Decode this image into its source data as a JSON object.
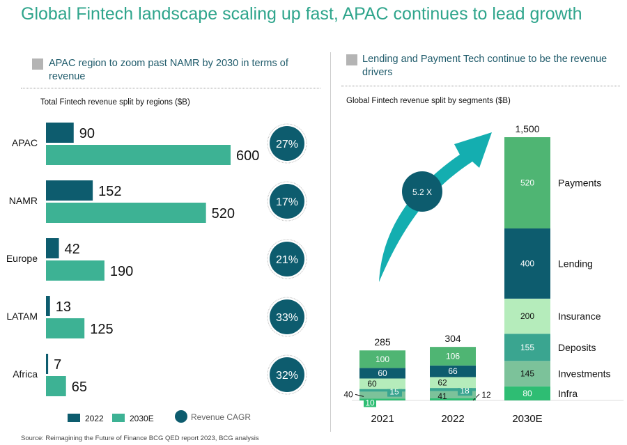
{
  "title": "Global Fintech landscape scaling up fast, APAC continues to lead growth",
  "left": {
    "subtitle": "APAC region to zoom past NAMR by 2030 in terms of revenue"
  },
  "right": {
    "subtitle": "Lending and Payment Tech continue to be the revenue drivers"
  },
  "source": "Source: Reimagining the Future of Finance BCG QED report 2023, BCG analysis",
  "chart_data": [
    {
      "type": "bar",
      "orientation": "horizontal",
      "title": "Total Fintech revenue split by regions ($B)",
      "categories": [
        "APAC",
        "NAMR",
        "Europe",
        "LATAM",
        "Africa"
      ],
      "series": [
        {
          "name": "2022",
          "color": "#0d5c6e",
          "values": [
            90,
            152,
            42,
            13,
            7
          ]
        },
        {
          "name": "2030E",
          "color": "#3db294",
          "values": [
            600,
            520,
            190,
            125,
            65
          ]
        }
      ],
      "cagr": {
        "name": "Revenue CAGR",
        "values": [
          "27%",
          "17%",
          "21%",
          "33%",
          "32%"
        ]
      },
      "legend": "bottom"
    },
    {
      "type": "bar",
      "stacked": true,
      "title": "Global Fintech revenue split by segments ($B)",
      "categories": [
        "2021",
        "2022",
        "2030E"
      ],
      "totals": [
        "285",
        "304",
        "1,500"
      ],
      "series": [
        {
          "name": "Infra",
          "color": "#2ebd73",
          "values": [
            10,
            12,
            80
          ]
        },
        {
          "name": "Investments",
          "color": "#7cc29a",
          "values": [
            40,
            41,
            145
          ]
        },
        {
          "name": "Deposits",
          "color": "#3aa590",
          "values": [
            15,
            18,
            155
          ]
        },
        {
          "name": "Insurance",
          "color": "#b5ecbb",
          "values": [
            60,
            62,
            200
          ]
        },
        {
          "name": "Lending",
          "color": "#0d5c6e",
          "values": [
            60,
            66,
            400
          ]
        },
        {
          "name": "Payments",
          "color": "#4fb573",
          "values": [
            100,
            106,
            520
          ]
        }
      ],
      "growth_label": "5.2 X"
    }
  ]
}
